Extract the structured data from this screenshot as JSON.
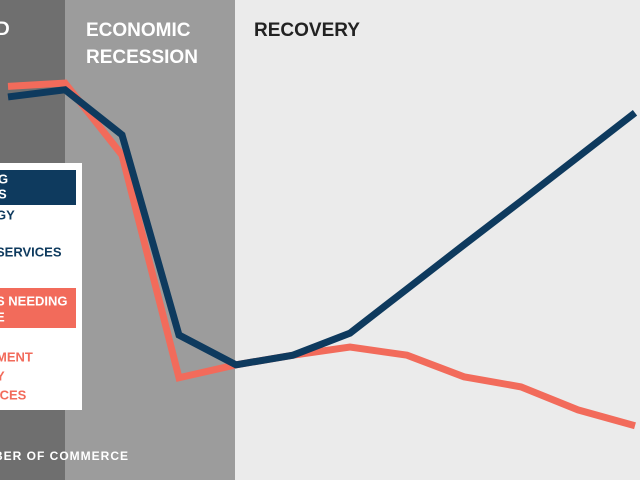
{
  "chart_data": {
    "type": "line",
    "phases": [
      "D",
      "ECONOMIC",
      "RECESSION",
      "RECOVERY"
    ],
    "categories": [
      null,
      null,
      null,
      null,
      null,
      null,
      null,
      null,
      null,
      null,
      null,
      null
    ],
    "series": [
      {
        "name": null,
        "color": "#f26b5b",
        "values": [
          82,
          82.7,
          67.7,
          21.3,
          24,
          26,
          27.7,
          26,
          21.5,
          19.4,
          14.6,
          11.3
        ]
      },
      {
        "name": null,
        "color": "#0e3a5e",
        "values": [
          79.8,
          81.3,
          71.9,
          30.2,
          24,
          26,
          30.6,
          39.8,
          49,
          58.1,
          67.3,
          76.5
        ]
      }
    ],
    "ylim": [
      0,
      100
    ],
    "legend_dark": [
      "G",
      "S"
    ],
    "legend_dark_text": [
      "GY",
      "SERVICES"
    ],
    "legend_red": [
      "S NEEDING",
      "E"
    ],
    "legend_red_text": [
      "MENT",
      "Y",
      "ICES"
    ],
    "source": "BER OF COMMERCE"
  }
}
